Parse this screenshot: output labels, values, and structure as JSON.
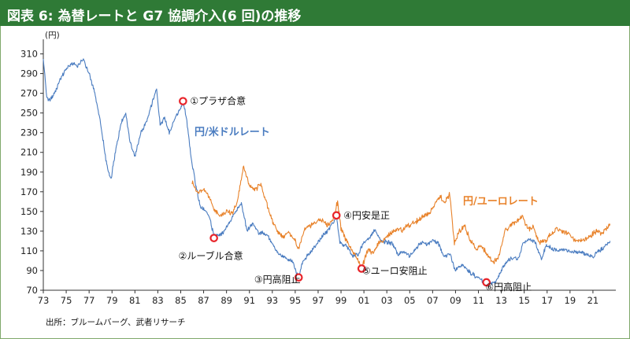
{
  "header": {
    "title": "図表 6: 為替レートと G7 協調介入(6 回)の推移"
  },
  "source": "出所：ブルームバーグ、武者リサーチ",
  "colors": {
    "title_bg": "#2f7a36",
    "usd": "#4a7cc0",
    "eur": "#e8822a",
    "marker": "#e8242a"
  },
  "chart_data": {
    "type": "line",
    "title": "図表 6: 為替レートと G7 協調介入(6 回)の推移",
    "y_unit": "(円)",
    "ylim": [
      70,
      320
    ],
    "yticks": [
      70,
      90,
      110,
      130,
      150,
      170,
      190,
      210,
      230,
      250,
      270,
      290,
      310
    ],
    "xlim": [
      1973,
      2023
    ],
    "xticks": [
      "73",
      "75",
      "77",
      "79",
      "81",
      "83",
      "85",
      "87",
      "89",
      "91",
      "93",
      "95",
      "97",
      "99",
      "01",
      "03",
      "05",
      "07",
      "09",
      "11",
      "13",
      "15",
      "17",
      "19",
      "21"
    ],
    "grid": false,
    "series": [
      {
        "name": "円/米ドルレート",
        "points": [
          [
            1973.0,
            306
          ],
          [
            1973.3,
            265
          ],
          [
            1973.6,
            263
          ],
          [
            1974.0,
            270
          ],
          [
            1974.5,
            285
          ],
          [
            1975.0,
            295
          ],
          [
            1975.5,
            300
          ],
          [
            1976.0,
            298
          ],
          [
            1976.5,
            304
          ],
          [
            1977.0,
            290
          ],
          [
            1977.5,
            270
          ],
          [
            1978.0,
            240
          ],
          [
            1978.5,
            200
          ],
          [
            1978.9,
            182
          ],
          [
            1979.3,
            210
          ],
          [
            1979.8,
            240
          ],
          [
            1980.2,
            250
          ],
          [
            1980.6,
            220
          ],
          [
            1981.0,
            205
          ],
          [
            1981.5,
            230
          ],
          [
            1982.0,
            240
          ],
          [
            1982.5,
            260
          ],
          [
            1982.9,
            275
          ],
          [
            1983.2,
            238
          ],
          [
            1983.6,
            245
          ],
          [
            1984.0,
            230
          ],
          [
            1984.5,
            245
          ],
          [
            1985.0,
            255
          ],
          [
            1985.2,
            262
          ],
          [
            1985.5,
            245
          ],
          [
            1985.9,
            205
          ],
          [
            1986.3,
            178
          ],
          [
            1986.7,
            155
          ],
          [
            1987.0,
            152
          ],
          [
            1987.5,
            145
          ],
          [
            1987.9,
            125
          ],
          [
            1988.3,
            125
          ],
          [
            1988.8,
            130
          ],
          [
            1989.3,
            140
          ],
          [
            1989.8,
            150
          ],
          [
            1990.3,
            158
          ],
          [
            1990.8,
            130
          ],
          [
            1991.3,
            138
          ],
          [
            1991.8,
            128
          ],
          [
            1992.3,
            128
          ],
          [
            1992.8,
            122
          ],
          [
            1993.3,
            110
          ],
          [
            1993.8,
            105
          ],
          [
            1994.3,
            102
          ],
          [
            1994.8,
            98
          ],
          [
            1995.3,
            83
          ],
          [
            1995.7,
            100
          ],
          [
            1996.3,
            108
          ],
          [
            1996.8,
            115
          ],
          [
            1997.3,
            124
          ],
          [
            1997.8,
            130
          ],
          [
            1998.3,
            138
          ],
          [
            1998.6,
            146
          ],
          [
            1998.9,
            118
          ],
          [
            1999.5,
            115
          ],
          [
            2000.0,
            105
          ],
          [
            2000.5,
            107
          ],
          [
            2001.0,
            118
          ],
          [
            2001.5,
            124
          ],
          [
            2002.0,
            132
          ],
          [
            2002.5,
            120
          ],
          [
            2003.0,
            119
          ],
          [
            2003.5,
            117
          ],
          [
            2004.0,
            106
          ],
          [
            2004.5,
            110
          ],
          [
            2005.0,
            104
          ],
          [
            2005.5,
            112
          ],
          [
            2006.0,
            118
          ],
          [
            2006.5,
            116
          ],
          [
            2007.0,
            121
          ],
          [
            2007.5,
            118
          ],
          [
            2008.0,
            103
          ],
          [
            2008.5,
            107
          ],
          [
            2009.0,
            90
          ],
          [
            2009.5,
            96
          ],
          [
            2010.0,
            91
          ],
          [
            2010.5,
            86
          ],
          [
            2011.0,
            83
          ],
          [
            2011.5,
            78
          ],
          [
            2012.0,
            77
          ],
          [
            2012.5,
            79
          ],
          [
            2013.0,
            90
          ],
          [
            2013.5,
            99
          ],
          [
            2014.0,
            103
          ],
          [
            2014.5,
            102
          ],
          [
            2014.9,
            118
          ],
          [
            2015.5,
            122
          ],
          [
            2016.0,
            118
          ],
          [
            2016.5,
            102
          ],
          [
            2016.9,
            115
          ],
          [
            2017.5,
            112
          ],
          [
            2018.0,
            110
          ],
          [
            2018.5,
            111
          ],
          [
            2019.0,
            110
          ],
          [
            2019.5,
            108
          ],
          [
            2020.0,
            109
          ],
          [
            2020.5,
            106
          ],
          [
            2021.0,
            104
          ],
          [
            2021.5,
            110
          ],
          [
            2022.0,
            114
          ],
          [
            2022.5,
            120
          ]
        ]
      },
      {
        "name": "円/ユーロレート",
        "points": [
          [
            1986.0,
            180
          ],
          [
            1986.5,
            168
          ],
          [
            1987.0,
            172
          ],
          [
            1987.5,
            165
          ],
          [
            1988.0,
            150
          ],
          [
            1988.5,
            146
          ],
          [
            1989.0,
            150
          ],
          [
            1989.5,
            148
          ],
          [
            1990.0,
            162
          ],
          [
            1990.5,
            197
          ],
          [
            1991.0,
            175
          ],
          [
            1991.5,
            172
          ],
          [
            1992.0,
            178
          ],
          [
            1992.5,
            158
          ],
          [
            1993.0,
            140
          ],
          [
            1993.5,
            128
          ],
          [
            1994.0,
            125
          ],
          [
            1994.5,
            128
          ],
          [
            1995.0,
            120
          ],
          [
            1995.3,
            112
          ],
          [
            1995.8,
            132
          ],
          [
            1996.3,
            136
          ],
          [
            1996.8,
            138
          ],
          [
            1997.3,
            142
          ],
          [
            1997.8,
            136
          ],
          [
            1998.3,
            142
          ],
          [
            1998.7,
            160
          ],
          [
            1999.0,
            132
          ],
          [
            1999.5,
            120
          ],
          [
            2000.0,
            110
          ],
          [
            2000.5,
            100
          ],
          [
            2000.8,
            92
          ],
          [
            2001.3,
            110
          ],
          [
            2001.8,
            108
          ],
          [
            2002.3,
            118
          ],
          [
            2002.8,
            122
          ],
          [
            2003.3,
            128
          ],
          [
            2003.8,
            132
          ],
          [
            2004.3,
            131
          ],
          [
            2004.8,
            135
          ],
          [
            2005.3,
            138
          ],
          [
            2005.8,
            142
          ],
          [
            2006.3,
            145
          ],
          [
            2006.8,
            150
          ],
          [
            2007.3,
            160
          ],
          [
            2007.7,
            165
          ],
          [
            2008.0,
            158
          ],
          [
            2008.5,
            168
          ],
          [
            2008.9,
            118
          ],
          [
            2009.3,
            130
          ],
          [
            2009.8,
            135
          ],
          [
            2010.3,
            120
          ],
          [
            2010.8,
            112
          ],
          [
            2011.3,
            115
          ],
          [
            2011.8,
            105
          ],
          [
            2012.3,
            98
          ],
          [
            2012.8,
            104
          ],
          [
            2013.3,
            130
          ],
          [
            2013.8,
            136
          ],
          [
            2014.3,
            140
          ],
          [
            2014.9,
            144
          ],
          [
            2015.3,
            132
          ],
          [
            2015.8,
            134
          ],
          [
            2016.3,
            118
          ],
          [
            2016.8,
            120
          ],
          [
            2017.3,
            126
          ],
          [
            2017.8,
            133
          ],
          [
            2018.3,
            130
          ],
          [
            2018.8,
            128
          ],
          [
            2019.3,
            122
          ],
          [
            2019.8,
            120
          ],
          [
            2020.3,
            121
          ],
          [
            2020.8,
            125
          ],
          [
            2021.3,
            130
          ],
          [
            2021.8,
            128
          ],
          [
            2022.3,
            134
          ],
          [
            2022.5,
            136
          ]
        ]
      }
    ],
    "annotations": [
      {
        "label": "①プラザ合意",
        "x": 1985.2,
        "y": 262
      },
      {
        "label": "②ルーブル合意",
        "x": 1987.9,
        "y": 123
      },
      {
        "label": "③円高阻止",
        "x": 1995.3,
        "y": 83
      },
      {
        "label": "④円安是正",
        "x": 1998.6,
        "y": 146
      },
      {
        "label": "⑤ユーロ安阻止",
        "x": 2000.8,
        "y": 92
      },
      {
        "label": "⑥円高阻止",
        "x": 2011.7,
        "y": 78
      }
    ]
  }
}
